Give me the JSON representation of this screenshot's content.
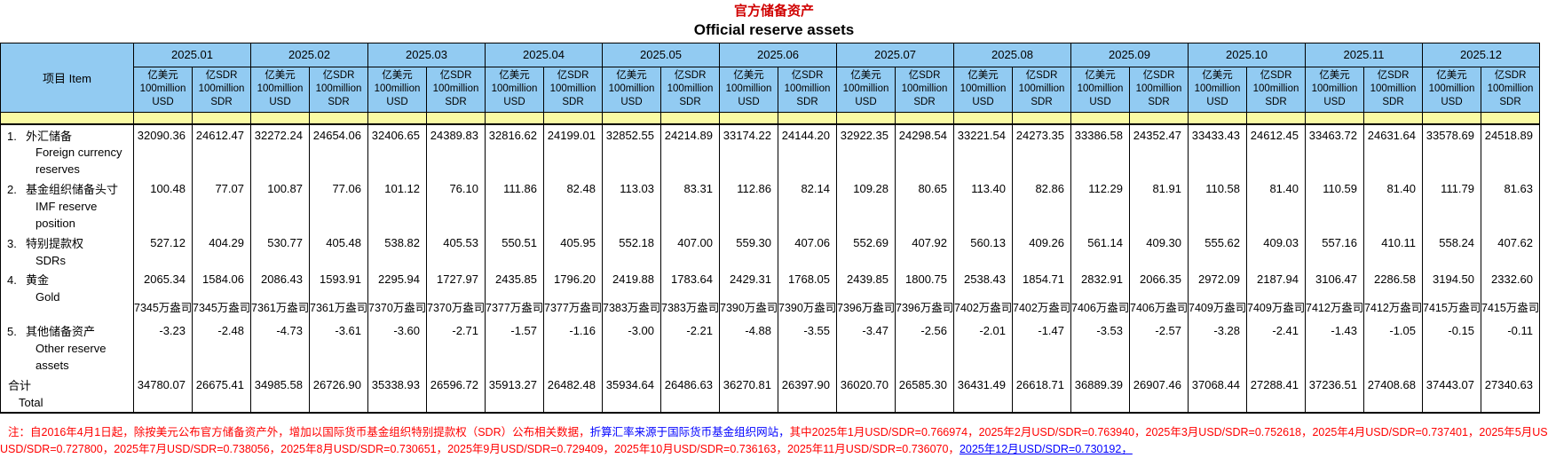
{
  "title": {
    "zh": "官方储备资产",
    "en": "Official reserve assets"
  },
  "item_header": "项目  Item",
  "months": [
    "2025.01",
    "2025.02",
    "2025.03",
    "2025.04",
    "2025.05",
    "2025.06",
    "2025.07",
    "2025.08",
    "2025.09",
    "2025.10",
    "2025.11",
    "2025.12"
  ],
  "units": {
    "usd": {
      "lines": [
        "亿美元",
        "100million",
        "USD"
      ]
    },
    "sdr": {
      "lines": [
        "亿SDR",
        "100million",
        "SDR"
      ]
    }
  },
  "rows": [
    {
      "num": "1.",
      "zh": "外汇储备",
      "en": "Foreign currency reserves",
      "usd": [
        "32090.36",
        "32272.24",
        "32406.65",
        "32816.62",
        "32852.55",
        "33174.22",
        "32922.35",
        "33221.54",
        "33386.58",
        "33433.43",
        "33463.72",
        "33578.69"
      ],
      "sdr": [
        "24612.47",
        "24654.06",
        "24389.83",
        "24199.01",
        "24214.89",
        "24144.20",
        "24298.54",
        "24273.35",
        "24352.47",
        "24612.45",
        "24631.64",
        "24518.89"
      ]
    },
    {
      "num": "2.",
      "zh": "基金组织储备头寸",
      "en": "IMF reserve position",
      "usd": [
        "100.48",
        "100.87",
        "101.12",
        "111.86",
        "113.03",
        "112.86",
        "109.28",
        "113.40",
        "112.29",
        "110.58",
        "110.59",
        "111.79"
      ],
      "sdr": [
        "77.07",
        "77.06",
        "76.10",
        "82.48",
        "83.31",
        "82.14",
        "80.65",
        "82.86",
        "81.91",
        "81.40",
        "81.40",
        "81.63"
      ]
    },
    {
      "num": "3.",
      "zh": "特别提款权",
      "en": "SDRs",
      "usd": [
        "527.12",
        "530.77",
        "538.82",
        "550.51",
        "552.18",
        "559.30",
        "552.69",
        "560.13",
        "561.14",
        "555.62",
        "557.16",
        "558.24"
      ],
      "sdr": [
        "404.29",
        "405.48",
        "405.53",
        "405.95",
        "407.00",
        "407.06",
        "407.92",
        "409.26",
        "409.30",
        "409.03",
        "410.11",
        "407.62"
      ]
    },
    {
      "num": "4.",
      "zh": "黄金",
      "en": "Gold",
      "usd": [
        "2065.34",
        "2086.43",
        "2295.94",
        "2435.85",
        "2419.88",
        "2429.31",
        "2439.85",
        "2538.43",
        "2832.91",
        "2972.09",
        "3106.47",
        "3194.50"
      ],
      "sdr": [
        "1584.06",
        "1593.91",
        "1727.97",
        "1796.20",
        "1783.64",
        "1768.05",
        "1800.75",
        "1854.71",
        "2066.35",
        "2187.94",
        "2286.58",
        "2332.60"
      ],
      "ounces": [
        "7345万盎司",
        "7361万盎司",
        "7370万盎司",
        "7377万盎司",
        "7383万盎司",
        "7390万盎司",
        "7396万盎司",
        "7402万盎司",
        "7406万盎司",
        "7409万盎司",
        "7412万盎司",
        "7415万盎司"
      ]
    },
    {
      "num": "5.",
      "zh": "其他储备资产",
      "en": "Other reserve assets",
      "usd": [
        "-3.23",
        "-4.73",
        "-3.60",
        "-1.57",
        "-3.00",
        "-4.88",
        "-3.47",
        "-2.01",
        "-3.53",
        "-3.28",
        "-1.43",
        "-0.15"
      ],
      "sdr": [
        "-2.48",
        "-3.61",
        "-2.71",
        "-1.16",
        "-2.21",
        "-3.55",
        "-2.56",
        "-1.47",
        "-2.57",
        "-2.41",
        "-1.05",
        "-0.11"
      ]
    },
    {
      "num": null,
      "is_total": true,
      "zh": "合计",
      "en": "Total",
      "usd": [
        "34780.07",
        "34985.58",
        "35338.93",
        "35913.27",
        "35934.64",
        "36270.81",
        "36020.70",
        "36431.49",
        "36889.39",
        "37068.44",
        "37236.51",
        "37443.07"
      ],
      "sdr": [
        "26675.41",
        "26726.90",
        "26596.72",
        "26482.48",
        "26486.63",
        "26397.90",
        "26585.30",
        "26618.71",
        "26907.46",
        "27288.41",
        "27408.68",
        "27340.63"
      ]
    }
  ],
  "note": {
    "lines": [
      [
        {
          "text": "注：自2016年4月1日起，除按美元公布官方储备资产外，增加以国际货币基金组织特别提款权（SDR）公布相关数据，",
          "color": "#ff0000"
        },
        {
          "text": "折算汇率来源于国际货币基金组织网站，",
          "color": "#0000ff"
        },
        {
          "text": "其中2025年1月USD/SDR=0.766974，2025年2月USD/SDR=0.763940，2025年3月USD/SDR=0.752618，2025年4月USD/SDR=0.737401，2025年5月USD/SDR=0.737078，2025年6月",
          "color": "#ff0000"
        }
      ],
      [
        {
          "text": "USD/SDR=0.727800，2025年7月USD/SDR=0.738056，2025年8月USD/SDR=0.730651，2025年9月USD/SDR=0.729409，2025年10月USD/SDR=0.736163，2025年11月USD/SDR=0.736070，",
          "color": "#ff0000"
        },
        {
          "text": "2025年12月USD/SDR=0.730192，",
          "color": "#0000ff",
          "underline": true
        }
      ]
    ]
  },
  "colors": {
    "title_red": "#d00000",
    "header_bg": "#92cbf2",
    "band_bg": "#fafba4",
    "note_red": "#ff0000",
    "note_blue": "#0000ff"
  }
}
